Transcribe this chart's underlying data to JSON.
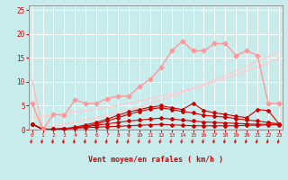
{
  "x": [
    0,
    1,
    2,
    3,
    4,
    5,
    6,
    7,
    8,
    9,
    10,
    11,
    12,
    13,
    14,
    15,
    16,
    17,
    18,
    19,
    20,
    21,
    22,
    23
  ],
  "series": [
    {
      "name": "dark_red_line1",
      "color": "#cc0000",
      "linewidth": 0.8,
      "marker": "D",
      "markersize": 2.0,
      "values": [
        1.2,
        0.1,
        0.1,
        0.2,
        0.3,
        0.4,
        0.5,
        0.6,
        0.7,
        0.8,
        0.9,
        1.0,
        1.1,
        1.0,
        0.9,
        0.8,
        0.8,
        0.8,
        0.8,
        0.8,
        0.9,
        0.9,
        1.0,
        1.0
      ]
    },
    {
      "name": "dark_red_line2",
      "color": "#cc0000",
      "linewidth": 0.8,
      "marker": "D",
      "markersize": 2.0,
      "values": [
        1.2,
        0.1,
        0.1,
        0.2,
        0.4,
        0.6,
        0.9,
        1.2,
        1.5,
        1.8,
        2.0,
        2.2,
        2.4,
        2.2,
        2.0,
        1.8,
        1.6,
        1.5,
        1.4,
        1.3,
        1.2,
        1.1,
        1.1,
        1.1
      ]
    },
    {
      "name": "dark_red_line3",
      "color": "#cc0000",
      "linewidth": 0.8,
      "marker": "D",
      "markersize": 2.0,
      "values": [
        1.2,
        0.0,
        0.1,
        0.2,
        0.5,
        1.0,
        1.5,
        2.2,
        3.0,
        3.7,
        4.2,
        4.7,
        5.0,
        4.6,
        4.2,
        5.5,
        4.0,
        3.5,
        3.2,
        2.8,
        2.5,
        4.2,
        4.0,
        1.2
      ]
    },
    {
      "name": "dark_red_line4",
      "color": "#cc0000",
      "linewidth": 0.8,
      "marker": "D",
      "markersize": 2.0,
      "values": [
        1.2,
        0.0,
        0.0,
        0.1,
        0.3,
        0.7,
        1.2,
        1.8,
        2.5,
        3.2,
        3.8,
        4.3,
        4.6,
        4.2,
        3.8,
        3.5,
        3.0,
        2.8,
        2.6,
        2.3,
        2.0,
        1.8,
        1.5,
        1.2
      ]
    },
    {
      "name": "pink_line1",
      "color": "#ff9999",
      "linewidth": 1.0,
      "marker": "D",
      "markersize": 2.5,
      "values": [
        5.5,
        0.0,
        3.2,
        3.0,
        6.2,
        5.5,
        5.5,
        6.5,
        7.0,
        7.0,
        9.0,
        10.5,
        13.0,
        16.5,
        18.5,
        16.5,
        16.5,
        18.0,
        18.0,
        15.5,
        16.5,
        15.5,
        5.5,
        5.5
      ]
    },
    {
      "name": "pink_line2",
      "color": "#ffbbbb",
      "linewidth": 1.0,
      "marker": null,
      "markersize": 0,
      "values": [
        10.5,
        0.0,
        0.0,
        0.0,
        0.0,
        0.0,
        0.0,
        0.0,
        0.0,
        0.0,
        0.0,
        0.0,
        0.0,
        0.0,
        0.0,
        0.0,
        0.0,
        0.0,
        0.0,
        0.0,
        0.0,
        0.0,
        0.0,
        0.0
      ]
    },
    {
      "name": "trend_upper",
      "color": "#ffcccc",
      "linewidth": 1.0,
      "marker": null,
      "markersize": 0,
      "values": [
        2.5,
        2.8,
        3.1,
        3.4,
        3.7,
        4.0,
        4.3,
        4.7,
        5.1,
        5.5,
        6.0,
        6.5,
        7.0,
        7.5,
        8.1,
        8.7,
        9.3,
        10.0,
        10.7,
        11.5,
        12.3,
        13.1,
        14.0,
        15.0
      ]
    },
    {
      "name": "trend_lower",
      "color": "#ffcccc",
      "linewidth": 1.0,
      "marker": null,
      "markersize": 0,
      "values": [
        0.0,
        0.3,
        0.7,
        1.1,
        1.5,
        2.0,
        2.5,
        3.0,
        3.6,
        4.2,
        4.8,
        5.5,
        6.2,
        7.0,
        7.8,
        8.6,
        9.5,
        10.4,
        11.3,
        12.3,
        13.3,
        14.3,
        15.3,
        16.3
      ]
    }
  ],
  "xlim": [
    -0.3,
    23.3
  ],
  "ylim": [
    0,
    26
  ],
  "yticks": [
    0,
    5,
    10,
    15,
    20,
    25
  ],
  "xticks": [
    0,
    1,
    2,
    3,
    4,
    5,
    6,
    7,
    8,
    9,
    10,
    11,
    12,
    13,
    14,
    15,
    16,
    17,
    18,
    19,
    20,
    21,
    22,
    23
  ],
  "xlabel": "Vent moyen/en rafales ( km/h )",
  "bg_color": "#c8ecec",
  "grid_color": "#ffffff",
  "tick_color": "#dd0000",
  "label_color": "#dd0000",
  "spine_color": "#888888"
}
